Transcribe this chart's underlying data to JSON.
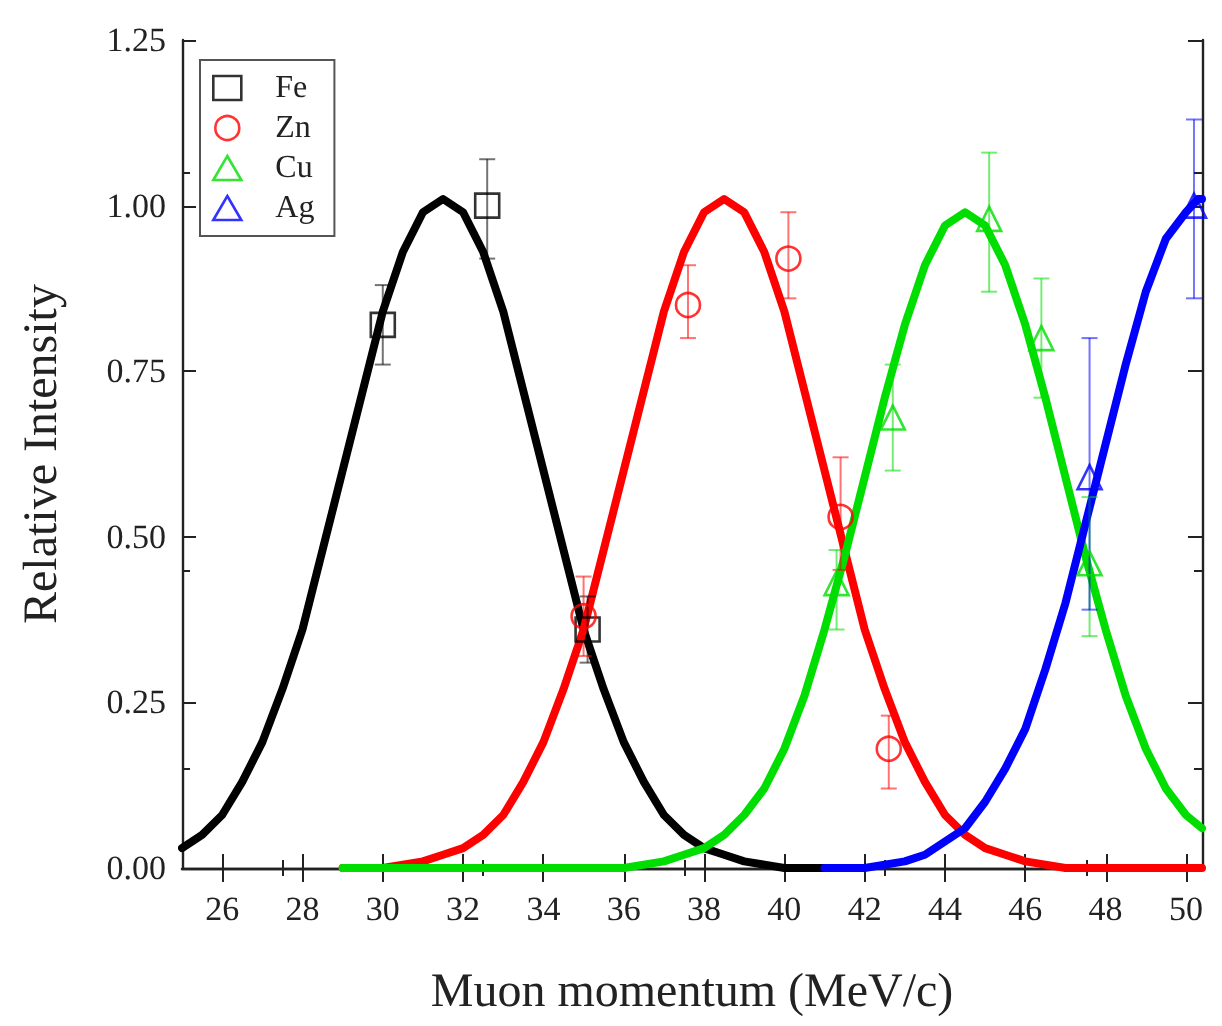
{
  "chart_data": {
    "type": "scatter",
    "xlabel": "Muon momentum (MeV/c)",
    "ylabel": "Relative Intensity",
    "xlim": [
      25,
      50.4
    ],
    "xticks": [
      26,
      28,
      30,
      32,
      34,
      36,
      38,
      40,
      42,
      44,
      46,
      48,
      50
    ],
    "ylim": [
      0,
      1.25
    ],
    "yticks": [
      {
        "value": 0,
        "label": "0.00"
      },
      {
        "value": 0.25,
        "label": "0.25"
      },
      {
        "value": 0.5,
        "label": "0.50"
      },
      {
        "value": 0.75,
        "label": "0.75"
      },
      {
        "value": 1,
        "label": "1.00"
      },
      {
        "value": 1.25,
        "label": "1.25"
      }
    ],
    "grid": false,
    "legend": "top left",
    "series": [
      {
        "name": "Fe",
        "marker": "square",
        "color": "#000000",
        "x": [
          30,
          32.6,
          35.1
        ],
        "values": [
          0.82,
          1.0,
          0.36
        ],
        "errors": [
          [
            0.76,
            0.88
          ],
          [
            0.92,
            1.07
          ],
          [
            0.31,
            0.41
          ]
        ]
      },
      {
        "name": "Zn",
        "marker": "circle",
        "color": "#ff0000",
        "x": [
          35,
          37.6,
          40.1,
          41.4,
          42.6
        ],
        "values": [
          0.38,
          0.85,
          0.92,
          0.53,
          0.18
        ],
        "errors": [
          [
            0.32,
            0.44
          ],
          [
            0.8,
            0.91
          ],
          [
            0.86,
            0.99
          ],
          [
            0.45,
            0.62
          ],
          [
            0.12,
            0.23
          ]
        ]
      },
      {
        "name": "Cu",
        "marker": "triangle",
        "color": "#00dd00",
        "x": [
          41.3,
          42.7,
          45.1,
          46.4,
          47.6
        ],
        "values": [
          0.43,
          0.68,
          0.98,
          0.8,
          0.46
        ],
        "errors": [
          [
            0.36,
            0.48
          ],
          [
            0.6,
            0.76
          ],
          [
            0.87,
            1.08
          ],
          [
            0.71,
            0.89
          ],
          [
            0.35,
            0.56
          ]
        ]
      },
      {
        "name": "Ag",
        "marker": "triangle",
        "color": "#0000ff",
        "x": [
          47.6,
          50.2
        ],
        "values": [
          0.59,
          1.0
        ],
        "errors": [
          [
            0.39,
            0.8
          ],
          [
            0.86,
            1.13
          ]
        ]
      },
      {
        "type": "line",
        "marker": "none",
        "color": "#000000",
        "x": [
          25,
          25.5,
          26,
          26.5,
          27,
          27.5,
          28,
          28.5,
          29,
          29.5,
          30,
          30.5,
          31,
          31.5,
          32,
          32.5,
          33,
          33.5,
          34,
          34.5,
          35,
          35.5,
          36,
          36.5,
          37,
          37.5,
          38,
          38.5,
          39,
          40,
          41
        ],
        "values": [
          0.03,
          0.05,
          0.08,
          0.13,
          0.19,
          0.27,
          0.36,
          0.48,
          0.6,
          0.72,
          0.84,
          0.93,
          0.99,
          1.01,
          0.99,
          0.93,
          0.84,
          0.72,
          0.6,
          0.48,
          0.36,
          0.27,
          0.19,
          0.13,
          0.08,
          0.05,
          0.03,
          0.02,
          0.01,
          0,
          0
        ]
      },
      {
        "type": "line",
        "marker": "none",
        "color": "#ff0000",
        "x": [
          29,
          30,
          31,
          31.5,
          32,
          32.5,
          33,
          33.5,
          34,
          34.5,
          35,
          35.5,
          36,
          36.5,
          37,
          37.5,
          38,
          38.5,
          39,
          39.5,
          40,
          40.5,
          41,
          41.5,
          42,
          42.5,
          43,
          43.5,
          44,
          44.5,
          45,
          45.5,
          46,
          47,
          50.4
        ],
        "values": [
          0,
          0,
          0.01,
          0.02,
          0.03,
          0.05,
          0.08,
          0.13,
          0.19,
          0.27,
          0.36,
          0.48,
          0.6,
          0.72,
          0.84,
          0.93,
          0.99,
          1.01,
          0.99,
          0.93,
          0.84,
          0.72,
          0.6,
          0.48,
          0.36,
          0.27,
          0.19,
          0.13,
          0.08,
          0.05,
          0.03,
          0.02,
          0.01,
          0,
          0
        ]
      },
      {
        "type": "line",
        "marker": "none",
        "color": "#00dd00",
        "x": [
          29,
          36,
          37,
          37.5,
          38,
          38.5,
          39,
          39.5,
          40,
          40.5,
          41,
          41.5,
          42,
          42.5,
          43,
          43.5,
          44,
          44.5,
          45,
          45.5,
          46,
          46.5,
          47,
          47.5,
          48,
          48.5,
          49,
          49.5,
          50,
          50.4
        ],
        "values": [
          0,
          0,
          0.01,
          0.02,
          0.03,
          0.05,
          0.08,
          0.12,
          0.18,
          0.26,
          0.36,
          0.47,
          0.59,
          0.71,
          0.82,
          0.91,
          0.97,
          0.99,
          0.97,
          0.91,
          0.82,
          0.71,
          0.59,
          0.47,
          0.36,
          0.26,
          0.18,
          0.12,
          0.08,
          0.06
        ]
      },
      {
        "type": "line",
        "marker": "none",
        "color": "#0000ff",
        "x": [
          41,
          42,
          43,
          43.5,
          44,
          44.5,
          45,
          45.5,
          46,
          46.5,
          47,
          47.5,
          48,
          48.5,
          49,
          49.5,
          50,
          50.3,
          50.4
        ],
        "values": [
          0,
          0,
          0.01,
          0.02,
          0.04,
          0.06,
          0.1,
          0.15,
          0.21,
          0.3,
          0.4,
          0.52,
          0.64,
          0.76,
          0.87,
          0.95,
          0.99,
          1.01,
          1.01
        ]
      }
    ]
  }
}
